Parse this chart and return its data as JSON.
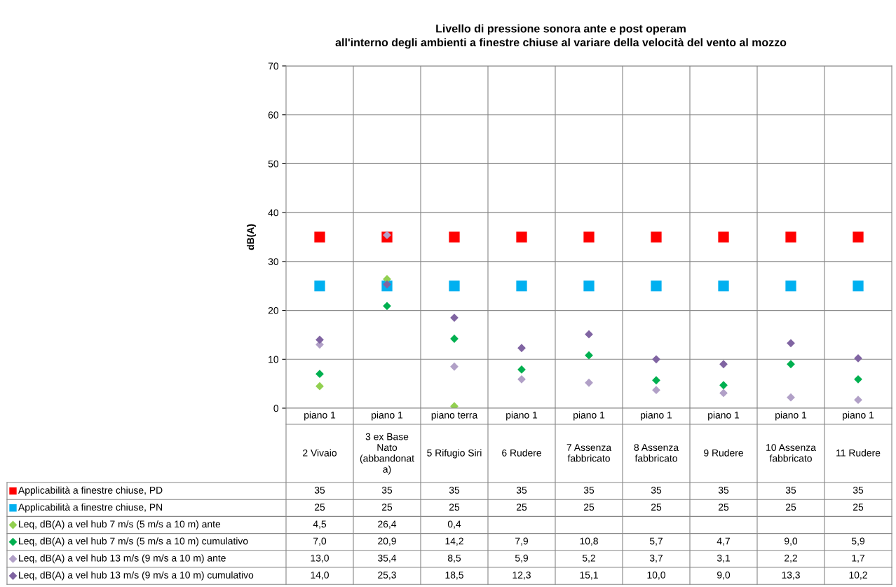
{
  "chart_data": {
    "type": "scatter",
    "title": "Livello di pressione sonora ante e post operam\nall'interno degli ambienti a finestre chiuse al variare della velocità del vento al mozzo",
    "ylabel": "dB(A)",
    "categories": [
      "piano 1\n2 Vivaio",
      "piano 1\n3 ex Base\nNato\n(abbandonat\na)",
      "piano terra\n5 Rifugio Siri",
      "piano 1\n6 Rudere",
      "piano 1\n7 Assenza\nfabbricato",
      "piano 1\n8 Assenza\nfabbricato",
      "piano 1\n9 Rudere",
      "piano 1\n10 Assenza\nfabbricato",
      "piano 1\n11 Rudere"
    ],
    "ylim": [
      0,
      70
    ],
    "yticks": [
      0,
      10,
      20,
      30,
      40,
      50,
      60,
      70
    ],
    "grid": true,
    "legend": "bottom",
    "data_labels": true,
    "series": [
      {
        "name": "Applicabilità a finestre chiuse, PD",
        "color": "#ff0000",
        "marker": "square",
        "values": [
          35,
          35,
          35,
          35,
          35,
          35,
          35,
          35,
          35
        ],
        "value_labels": [
          "35",
          "35",
          "35",
          "35",
          "35",
          "35",
          "35",
          "35",
          "35"
        ]
      },
      {
        "name": "Applicabilità a finestre chiuse, PN",
        "color": "#00b0f0",
        "marker": "square",
        "values": [
          25,
          25,
          25,
          25,
          25,
          25,
          25,
          25,
          25
        ],
        "value_labels": [
          "25",
          "25",
          "25",
          "25",
          "25",
          "25",
          "25",
          "25",
          "25"
        ]
      },
      {
        "name": "Leq, dB(A) a vel hub 7 m/s (5 m/s a 10 m) ante",
        "color": "#92d050",
        "marker": "diamond",
        "values": [
          4.5,
          26.4,
          0.4,
          null,
          null,
          null,
          null,
          null,
          null
        ],
        "value_labels": [
          "4,5",
          "26,4",
          "0,4",
          null,
          null,
          null,
          null,
          null,
          null
        ]
      },
      {
        "name": "Leq, dB(A) a vel hub 7 m/s (5 m/s a 10 m) cumulativo",
        "color": "#00b050",
        "marker": "diamond",
        "values": [
          7.0,
          20.9,
          14.2,
          7.9,
          10.8,
          5.7,
          4.7,
          9.0,
          5.9
        ],
        "value_labels": [
          "7,0",
          "20,9",
          "14,2",
          "7,9",
          "10,8",
          "5,7",
          "4,7",
          "9,0",
          "5,9"
        ]
      },
      {
        "name": "Leq, dB(A) a vel hub 13 m/s (9 m/s a 10 m) ante",
        "color": "#b1a0c7",
        "marker": "diamond",
        "values": [
          13.0,
          35.4,
          8.5,
          5.9,
          5.2,
          3.7,
          3.1,
          2.2,
          1.7
        ],
        "value_labels": [
          "13,0",
          "35,4",
          "8,5",
          "5,9",
          "5,2",
          "3,7",
          "3,1",
          "2,2",
          "1,7"
        ]
      },
      {
        "name": "Leq, dB(A) a vel hub 13 m/s (9 m/s a 10 m) cumulativo",
        "color": "#8064a2",
        "marker": "diamond",
        "values": [
          14.0,
          25.3,
          18.5,
          12.3,
          15.1,
          10.0,
          9.0,
          13.3,
          10.2
        ],
        "value_labels": [
          "14,0",
          "25,3",
          "18,5",
          "12,3",
          "15,1",
          "10,0",
          "9,0",
          "13,3",
          "10,2"
        ]
      }
    ]
  }
}
